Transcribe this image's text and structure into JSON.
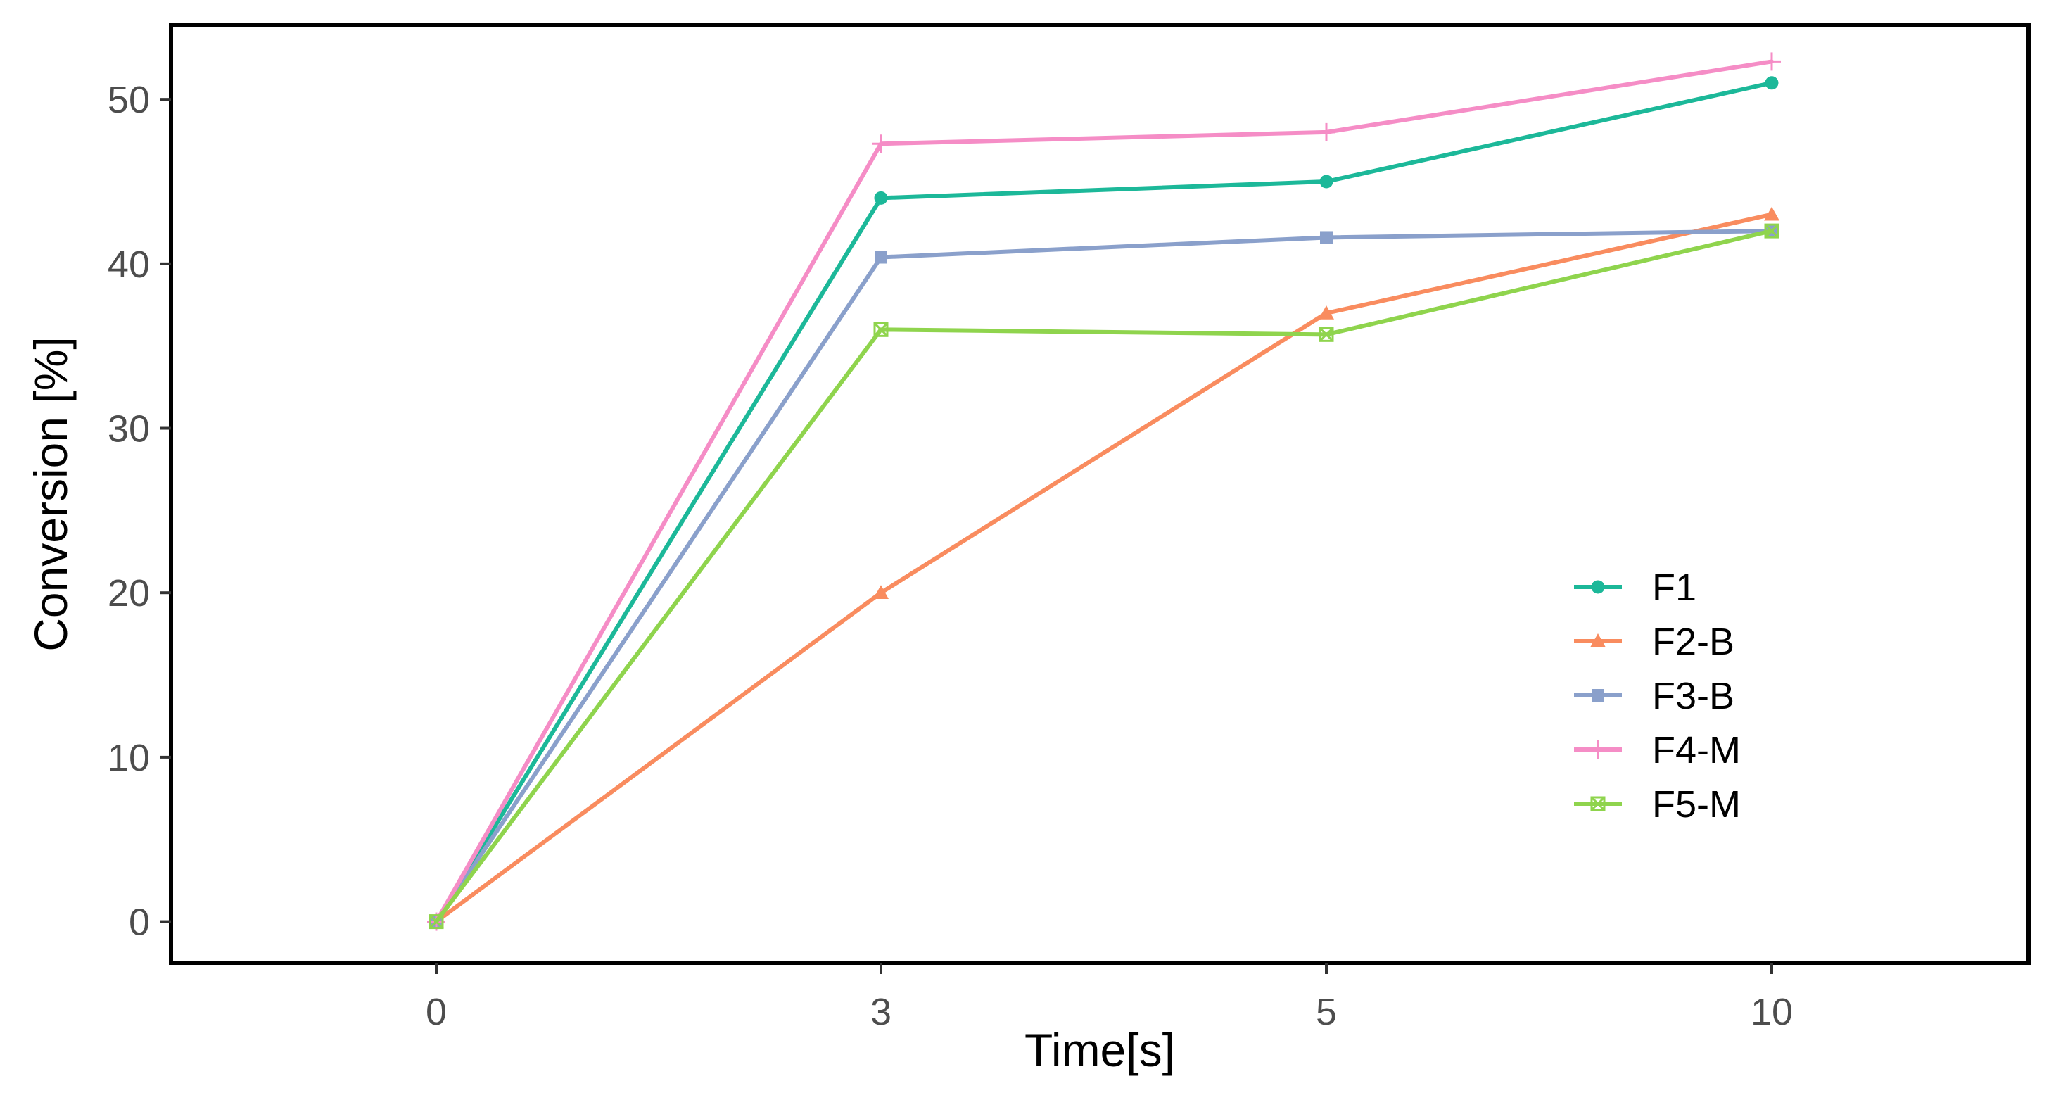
{
  "chart_data": {
    "type": "line",
    "title": "",
    "xlabel": "Time[s]",
    "ylabel": "Conversion [%]",
    "categories": [
      "0",
      "3",
      "5",
      "10"
    ],
    "ylim": [
      -2.5,
      54.5
    ],
    "yticks": [
      0,
      10,
      20,
      30,
      40,
      50
    ],
    "grid": false,
    "legend_position": "bottom-right",
    "series": [
      {
        "name": "F1",
        "marker": "circle",
        "color": "#1cb899",
        "values": [
          0,
          44,
          45,
          51
        ]
      },
      {
        "name": "F2-B",
        "marker": "triangle",
        "color": "#f98c5f",
        "values": [
          0,
          20,
          37,
          43
        ]
      },
      {
        "name": "F3-B",
        "marker": "square",
        "color": "#8aa0cb",
        "values": [
          0,
          40.4,
          41.6,
          42
        ]
      },
      {
        "name": "F4-M",
        "marker": "plus",
        "color": "#f58dc6",
        "values": [
          0,
          47.3,
          48,
          52.3
        ]
      },
      {
        "name": "F5-M",
        "marker": "square-crossed",
        "color": "#8fd44d",
        "values": [
          0,
          36,
          35.7,
          42
        ]
      }
    ]
  }
}
